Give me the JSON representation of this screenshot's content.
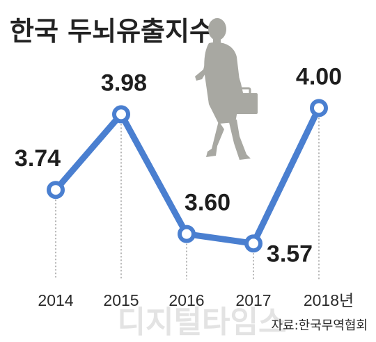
{
  "chart_data": {
    "type": "line",
    "title": "한국 두뇌유출지수",
    "categories": [
      "2014",
      "2015",
      "2016",
      "2017",
      "2018년"
    ],
    "values": [
      3.74,
      3.98,
      3.6,
      3.57,
      4.0
    ],
    "value_labels": [
      "3.74",
      "3.98",
      "3.60",
      "3.57",
      "4.00"
    ],
    "xlabel": "",
    "ylabel": "",
    "ylim": [
      3.5,
      4.1
    ],
    "grid": false,
    "legend": "none",
    "line_color": "#4a7fd0",
    "marker_fill": "#ffffff",
    "guide_style": "dotted vertical lines"
  },
  "source": "자료:한국무역협회",
  "watermark": "디지털타임스",
  "colors": {
    "line": "#4a7fd0",
    "silhouette": "#a8a8a2",
    "watermark": "#e3e3e3",
    "text": "#222222"
  },
  "decoration": "businessman-silhouette"
}
